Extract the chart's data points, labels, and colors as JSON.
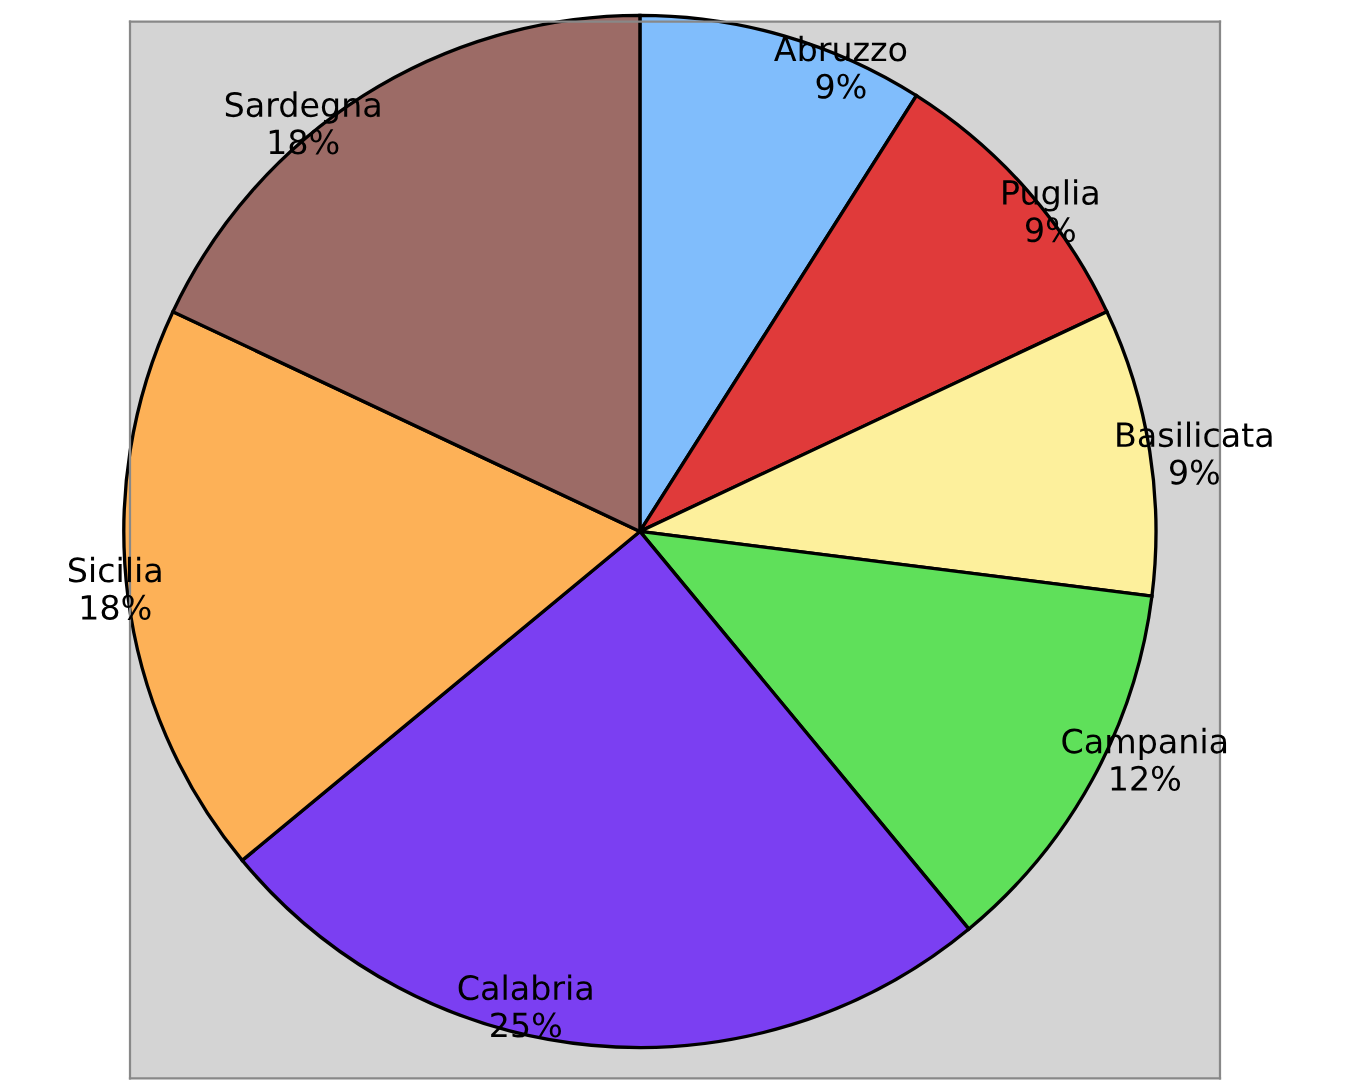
{
  "chart_data": {
    "type": "pie",
    "categories": [
      "Abruzzo",
      "Puglia",
      "Basilicata",
      "Campania",
      "Calabria",
      "Sicilia",
      "Sardegna"
    ],
    "values": [
      9,
      9,
      9,
      12,
      25,
      18,
      18
    ],
    "value_labels": [
      "9%",
      "9%",
      "9%",
      "12%",
      "25%",
      "18%",
      "18%"
    ],
    "colors": [
      "#80bdfc",
      "#e03a3a",
      "#fdf09c",
      "#5fe05a",
      "#7b3ff2",
      "#fdb157",
      "#9c6b66"
    ]
  }
}
